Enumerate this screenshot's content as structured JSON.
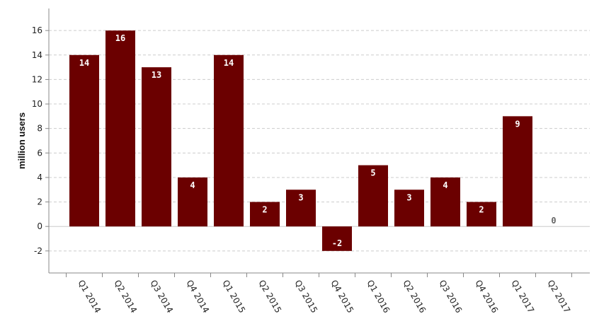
{
  "chart_data": {
    "type": "bar",
    "categories": [
      "Q1 2014",
      "Q2 2014",
      "Q3 2014",
      "Q4 2014",
      "Q1 2015",
      "Q2 2015",
      "Q3 2015",
      "Q4 2015",
      "Q1 2016",
      "Q2 2016",
      "Q3 2016",
      "Q4 2016",
      "Q1 2017",
      "Q2 2017"
    ],
    "values": [
      14,
      16,
      13,
      4,
      14,
      2,
      3,
      -2,
      5,
      3,
      4,
      2,
      9,
      0
    ],
    "xlabel": "",
    "ylabel": "million users",
    "ylim": [
      -3.8,
      17.8
    ],
    "yticks": [
      -2,
      0,
      2,
      4,
      6,
      8,
      10,
      12,
      14,
      16
    ],
    "grid": true,
    "data_labels": true,
    "bar_color": "#6b0000",
    "label_color": "#ffffff"
  }
}
